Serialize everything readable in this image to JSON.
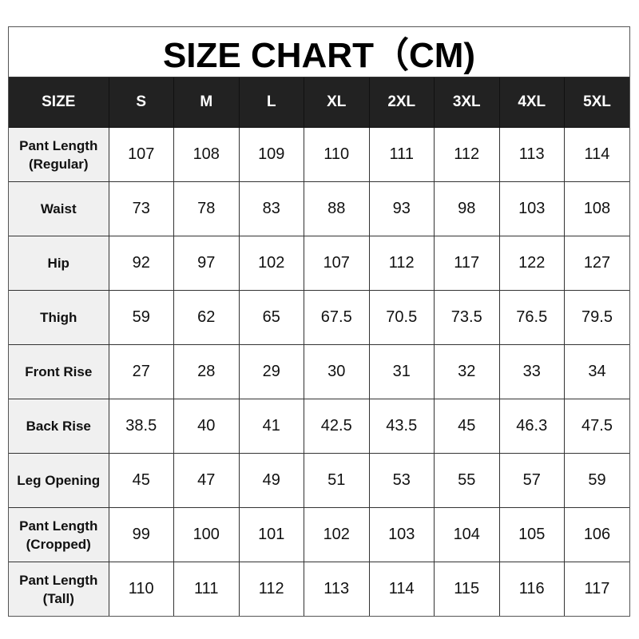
{
  "title": "SIZE CHART（CM)",
  "header": [
    "SIZE",
    "S",
    "M",
    "L",
    "XL",
    "2XL",
    "3XL",
    "4XL",
    "5XL"
  ],
  "rows": [
    {
      "label": [
        "Pant Length",
        "(Regular)"
      ],
      "values": [
        "107",
        "108",
        "109",
        "110",
        "111",
        "112",
        "113",
        "114"
      ]
    },
    {
      "label": [
        "Waist"
      ],
      "values": [
        "73",
        "78",
        "83",
        "88",
        "93",
        "98",
        "103",
        "108"
      ]
    },
    {
      "label": [
        "Hip"
      ],
      "values": [
        "92",
        "97",
        "102",
        "107",
        "112",
        "117",
        "122",
        "127"
      ]
    },
    {
      "label": [
        "Thigh"
      ],
      "values": [
        "59",
        "62",
        "65",
        "67.5",
        "70.5",
        "73.5",
        "76.5",
        "79.5"
      ]
    },
    {
      "label": [
        "Front Rise"
      ],
      "values": [
        "27",
        "28",
        "29",
        "30",
        "31",
        "32",
        "33",
        "34"
      ]
    },
    {
      "label": [
        "Back Rise"
      ],
      "values": [
        "38.5",
        "40",
        "41",
        "42.5",
        "43.5",
        "45",
        "46.3",
        "47.5"
      ]
    },
    {
      "label": [
        "Leg Opening"
      ],
      "values": [
        "45",
        "47",
        "49",
        "51",
        "53",
        "55",
        "57",
        "59"
      ]
    },
    {
      "label": [
        "Pant Length",
        "(Cropped)"
      ],
      "values": [
        "99",
        "100",
        "101",
        "102",
        "103",
        "104",
        "105",
        "106"
      ]
    },
    {
      "label": [
        "Pant Length",
        "(Tall)"
      ],
      "values": [
        "110",
        "111",
        "112",
        "113",
        "114",
        "115",
        "116",
        "117"
      ]
    }
  ],
  "colors": {
    "header_bg": "#222222",
    "header_text": "#ffffff",
    "label_bg": "#f0f0f0"
  }
}
